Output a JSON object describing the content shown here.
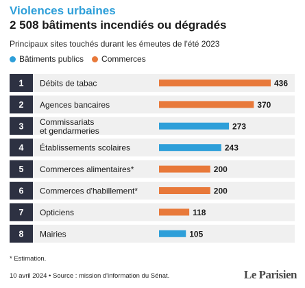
{
  "header": {
    "title": "Violences urbaines",
    "headline": "2 508 bâtiments incendiés ou dégradés",
    "subtitle": "Principaux sites touchés durant les émeutes de l'été 2023"
  },
  "colors": {
    "title_blue": "#2e9fd9",
    "publics": "#2e9fd9",
    "commerces": "#e8793a",
    "rank_box": "#2d3142",
    "row_bg": "#f0f0f0"
  },
  "legend": [
    {
      "name": "Bâtiments publics",
      "color": "#2e9fd9"
    },
    {
      "name": "Commerces",
      "color": "#e8793a"
    }
  ],
  "chart_data": {
    "type": "bar",
    "orientation": "horizontal",
    "title": "2 508 bâtiments incendiés ou dégradés",
    "xlim": [
      0,
      436
    ],
    "grid": false,
    "legend_position": "top-left",
    "rows": [
      {
        "rank": "1",
        "label_lines": [
          "Débits de tabac"
        ],
        "value": 436,
        "category": "Commerces"
      },
      {
        "rank": "2",
        "label_lines": [
          "Agences bancaires"
        ],
        "value": 370,
        "category": "Commerces"
      },
      {
        "rank": "3",
        "label_lines": [
          "Commissariats",
          "et gendarmeries"
        ],
        "value": 273,
        "category": "Bâtiments publics"
      },
      {
        "rank": "4",
        "label_lines": [
          "Établissements scolaires"
        ],
        "value": 243,
        "category": "Bâtiments publics"
      },
      {
        "rank": "5",
        "label_lines": [
          "Commerces alimentaires*"
        ],
        "value": 200,
        "category": "Commerces"
      },
      {
        "rank": "6",
        "label_lines": [
          "Commerces d'habillement*"
        ],
        "value": 200,
        "category": "Commerces"
      },
      {
        "rank": "7",
        "label_lines": [
          "Opticiens"
        ],
        "value": 118,
        "category": "Commerces"
      },
      {
        "rank": "8",
        "label_lines": [
          "Mairies"
        ],
        "value": 105,
        "category": "Bâtiments publics"
      }
    ]
  },
  "footer": {
    "note": "* Estimation.",
    "source": "10 avril 2024 • Source : mission d'information du Sénat.",
    "brand": "Le Parisien"
  }
}
